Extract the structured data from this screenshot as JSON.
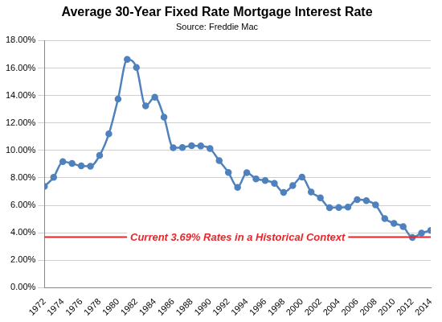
{
  "chart_data": {
    "type": "line",
    "title": "Average 30-Year Fixed Rate Mortgage Interest Rate",
    "subtitle": "Source: Freddie Mac",
    "categories": [
      "1972",
      null,
      "1974",
      null,
      "1976",
      null,
      "1978",
      null,
      "1980",
      null,
      "1982",
      null,
      "1984",
      null,
      "1986",
      null,
      "1988",
      null,
      "1990",
      null,
      "1992",
      null,
      "1994",
      null,
      "1996",
      null,
      "1998",
      null,
      "2000",
      null,
      "2002",
      null,
      "2004",
      null,
      "2006",
      null,
      "2008",
      null,
      "2010",
      null,
      "2012",
      null,
      "2014"
    ],
    "values": [
      7.38,
      8.04,
      9.19,
      9.05,
      8.87,
      8.85,
      9.64,
      11.2,
      13.74,
      16.63,
      16.04,
      13.24,
      13.88,
      12.43,
      10.19,
      10.21,
      10.34,
      10.32,
      10.13,
      9.25,
      8.39,
      7.31,
      8.38,
      7.93,
      7.81,
      7.6,
      6.94,
      7.44,
      8.05,
      6.97,
      6.54,
      5.83,
      5.84,
      5.87,
      6.41,
      6.34,
      6.03,
      5.04,
      4.69,
      4.45,
      3.66,
      3.98,
      4.17
    ],
    "color": "#4f81bd",
    "marker": "circle",
    "line_style": "smooth",
    "ylim": [
      0,
      18
    ],
    "yticks": [
      {
        "value": 0,
        "label": "0.00%"
      },
      {
        "value": 2,
        "label": "2.00%"
      },
      {
        "value": 4,
        "label": "4.00%"
      },
      {
        "value": 6,
        "label": "6.00%"
      },
      {
        "value": 8,
        "label": "8.00%"
      },
      {
        "value": 10,
        "label": "10.00%"
      },
      {
        "value": 12,
        "label": "12.00%"
      },
      {
        "value": 14,
        "label": "14.00%"
      },
      {
        "value": 16,
        "label": "16.00%"
      },
      {
        "value": 18,
        "label": "18.00%"
      }
    ],
    "grid": true,
    "reference_line": {
      "value": 3.69,
      "label": "Current 3.69% Rates in a Historical Context",
      "color": "#e8262a"
    }
  }
}
